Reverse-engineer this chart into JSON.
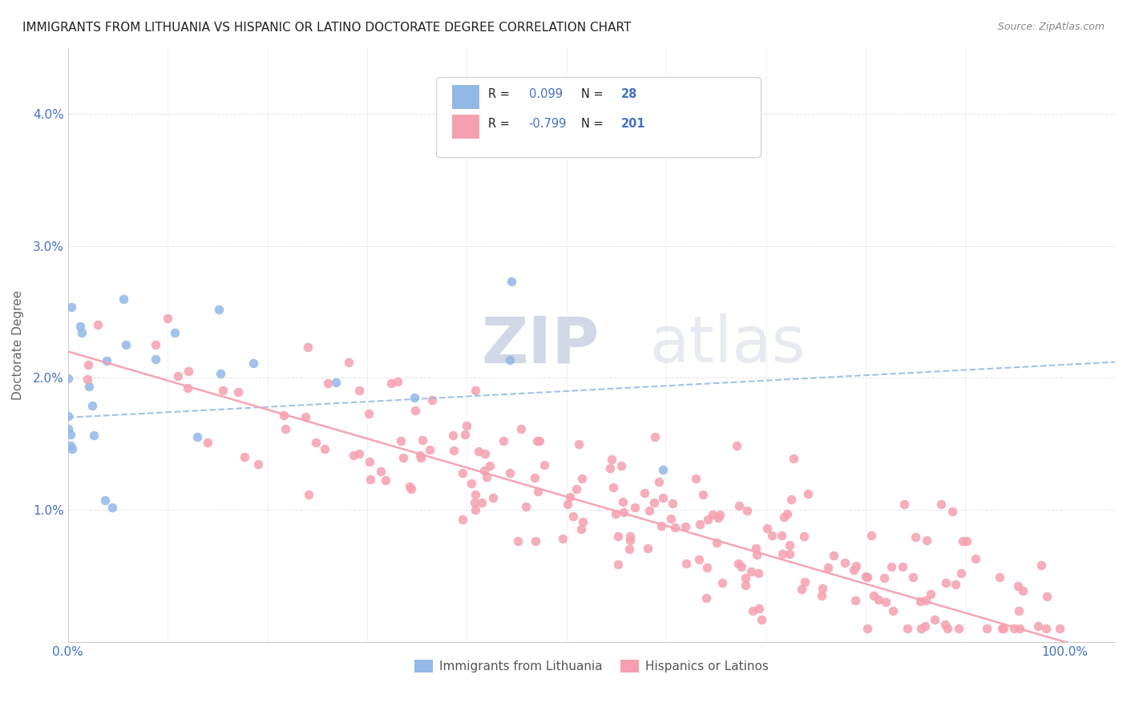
{
  "title": "IMMIGRANTS FROM LITHUANIA VS HISPANIC OR LATINO DOCTORATE DEGREE CORRELATION CHART",
  "source": "Source: ZipAtlas.com",
  "ylabel": "Doctorate Degree",
  "r_blue": 0.099,
  "n_blue": 28,
  "r_pink": -0.799,
  "n_pink": 201,
  "legend_labels": [
    "Immigrants from Lithuania",
    "Hispanics or Latinos"
  ],
  "blue_color": "#92b8e8",
  "pink_color": "#f5a0b0",
  "title_color": "#222222",
  "r_label_color": "#4472c4",
  "background_color": "#ffffff",
  "ylim": [
    0.0,
    0.045
  ],
  "xlim": [
    0.0,
    1.05
  ]
}
